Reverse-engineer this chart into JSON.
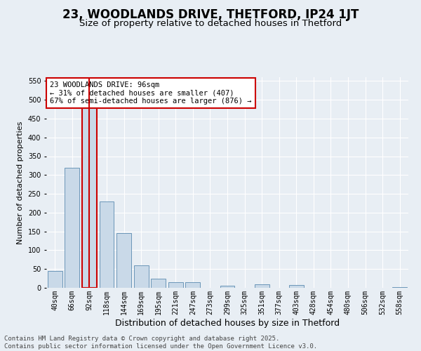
{
  "title": "23, WOODLANDS DRIVE, THETFORD, IP24 1JT",
  "subtitle": "Size of property relative to detached houses in Thetford",
  "xlabel": "Distribution of detached houses by size in Thetford",
  "ylabel": "Number of detached properties",
  "categories": [
    "40sqm",
    "66sqm",
    "92sqm",
    "118sqm",
    "144sqm",
    "169sqm",
    "195sqm",
    "221sqm",
    "247sqm",
    "273sqm",
    "299sqm",
    "325sqm",
    "351sqm",
    "377sqm",
    "403sqm",
    "428sqm",
    "454sqm",
    "480sqm",
    "506sqm",
    "532sqm",
    "558sqm"
  ],
  "values": [
    45,
    320,
    510,
    230,
    145,
    60,
    25,
    15,
    15,
    0,
    5,
    0,
    10,
    0,
    8,
    0,
    0,
    0,
    0,
    0,
    2
  ],
  "bar_color": "#c9d9e8",
  "bar_edge_color": "#5a8ab0",
  "highlight_bar_index": 2,
  "highlight_bar_edge_color": "#cc0000",
  "vline_color": "#cc0000",
  "annotation_text": "23 WOODLANDS DRIVE: 96sqm\n← 31% of detached houses are smaller (407)\n67% of semi-detached houses are larger (876) →",
  "annotation_box_color": "#ffffff",
  "annotation_box_edge_color": "#cc0000",
  "ylim": [
    0,
    560
  ],
  "yticks": [
    0,
    50,
    100,
    150,
    200,
    250,
    300,
    350,
    400,
    450,
    500,
    550
  ],
  "background_color": "#e8eef4",
  "plot_bg_color": "#e8eef4",
  "grid_color": "#ffffff",
  "footer_text": "Contains HM Land Registry data © Crown copyright and database right 2025.\nContains public sector information licensed under the Open Government Licence v3.0.",
  "title_fontsize": 12,
  "subtitle_fontsize": 9.5,
  "xlabel_fontsize": 9,
  "ylabel_fontsize": 8,
  "tick_fontsize": 7,
  "annotation_fontsize": 7.5,
  "footer_fontsize": 6.5
}
